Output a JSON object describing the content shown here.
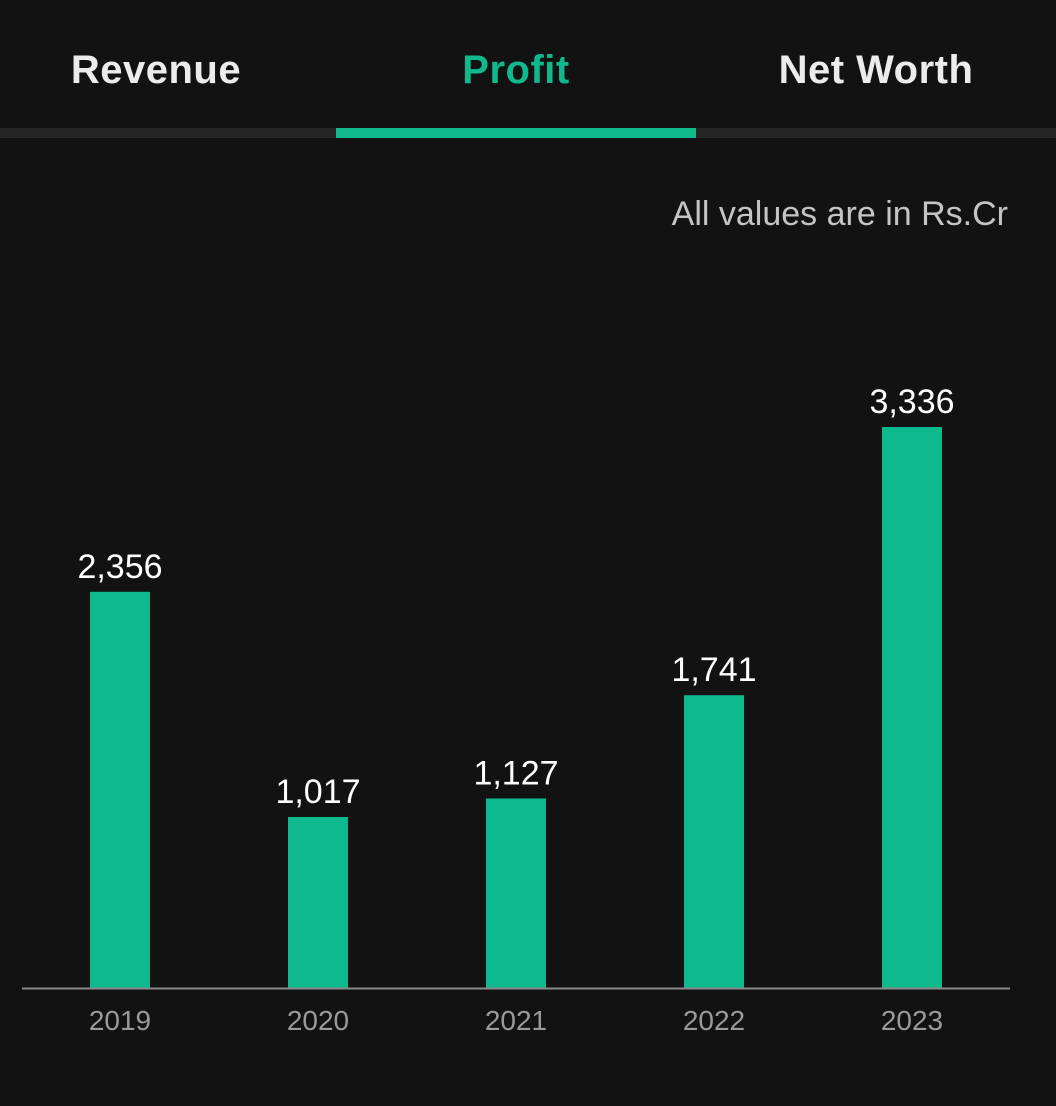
{
  "tabs": [
    {
      "label": "Revenue",
      "active": false
    },
    {
      "label": "Profit",
      "active": true
    },
    {
      "label": "Net Worth",
      "active": false
    }
  ],
  "unit_note": "All values are in Rs.Cr",
  "colors": {
    "background": "#121212",
    "accent": "#10b88c",
    "bar": "#0dba8e",
    "axis": "#8a8a8a",
    "tick_label": "#9a9a9a",
    "value_label": "#ffffff"
  },
  "chart_data": {
    "type": "bar",
    "categories": [
      "2019",
      "2020",
      "2021",
      "2022",
      "2023"
    ],
    "values": [
      2356,
      1017,
      1127,
      1741,
      3336
    ],
    "value_labels": [
      "2,356",
      "1,017",
      "1,127",
      "1,741",
      "3,336"
    ],
    "title": "",
    "xlabel": "",
    "ylabel": "",
    "ylim": [
      0,
      3336
    ],
    "grid": false,
    "legend": "none"
  }
}
